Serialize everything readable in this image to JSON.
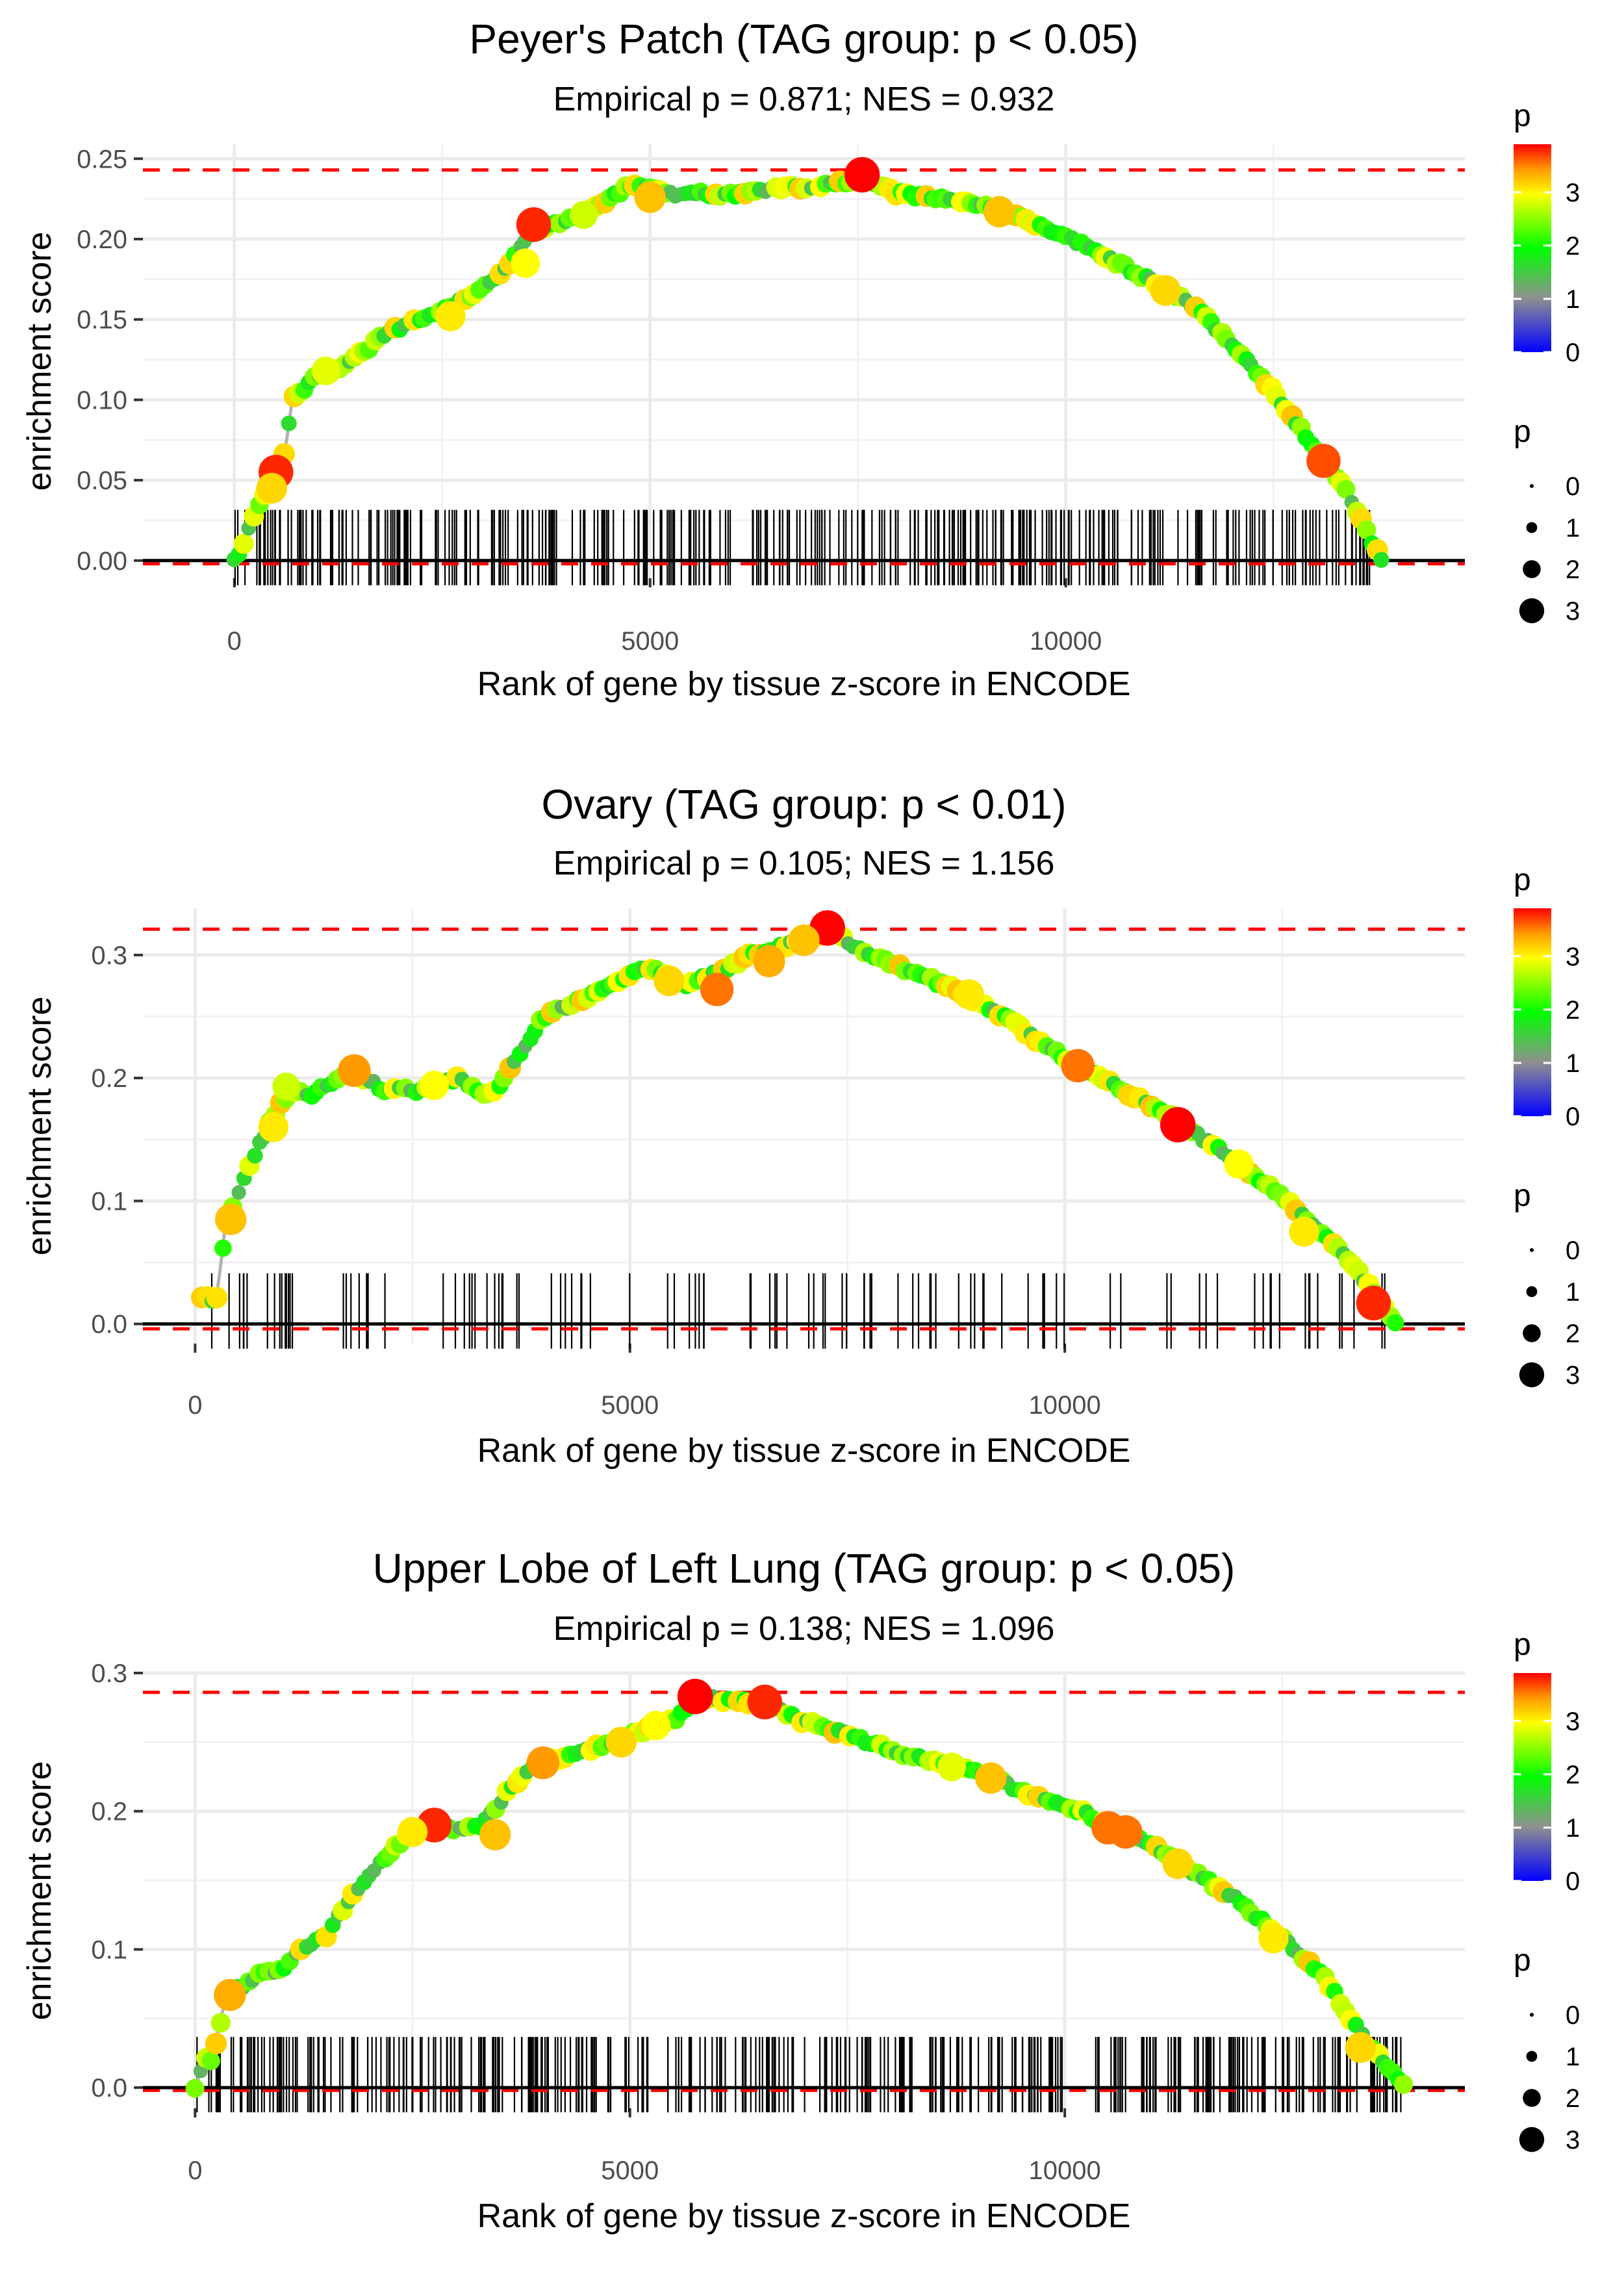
{
  "chart_data": [
    {
      "type": "line",
      "title": "Peyer's Patch (TAG group: p < 0.05)",
      "subtitle": "Empirical p = 0.871; NES = 0.932",
      "xlabel": "Rank of gene by tissue z-score in ENCODE",
      "ylabel": "enrichment score",
      "xlim": [
        -1100,
        14800
      ],
      "ylim": [
        -0.011,
        0.259
      ],
      "xticks": [
        0,
        5000,
        10000
      ],
      "xtick_labels": [
        "0",
        "5000",
        "10000"
      ],
      "yticks": [
        0,
        0.05,
        0.1,
        0.15,
        0.2,
        0.25
      ],
      "ytick_labels": [
        "0.00",
        "0.05",
        "0.10",
        "0.15",
        "0.20",
        "0.25"
      ],
      "max_line": 0.243,
      "min_line": -0.002,
      "grid": true,
      "hit_range": [
        0,
        13700
      ],
      "n_hits": 330,
      "seed": 11,
      "curve": [
        [
          0,
          0
        ],
        [
          120,
          0.012
        ],
        [
          300,
          0.035
        ],
        [
          500,
          0.05
        ],
        [
          600,
          0.065
        ],
        [
          700,
          0.1
        ],
        [
          1000,
          0.115
        ],
        [
          1300,
          0.12
        ],
        [
          1500,
          0.128
        ],
        [
          1800,
          0.14
        ],
        [
          2200,
          0.15
        ],
        [
          2500,
          0.155
        ],
        [
          3000,
          0.17
        ],
        [
          3300,
          0.185
        ],
        [
          3600,
          0.205
        ],
        [
          4000,
          0.212
        ],
        [
          4500,
          0.225
        ],
        [
          4800,
          0.235
        ],
        [
          5200,
          0.228
        ],
        [
          6000,
          0.228
        ],
        [
          7000,
          0.233
        ],
        [
          7600,
          0.238
        ],
        [
          8000,
          0.228
        ],
        [
          9000,
          0.222
        ],
        [
          9500,
          0.212
        ],
        [
          10000,
          0.202
        ],
        [
          10500,
          0.188
        ],
        [
          11000,
          0.175
        ],
        [
          11500,
          0.16
        ],
        [
          12000,
          0.135
        ],
        [
          12500,
          0.105
        ],
        [
          13000,
          0.07
        ],
        [
          13300,
          0.05
        ],
        [
          13600,
          0.02
        ],
        [
          13800,
          0.0
        ]
      ],
      "highlight_points": [
        [
          500,
          0.055,
          3.8
        ],
        [
          3600,
          0.209,
          3.8
        ],
        [
          7550,
          0.24,
          3.9
        ],
        [
          13100,
          0.062,
          3.7
        ],
        [
          5000,
          0.226,
          3.3
        ],
        [
          9200,
          0.217,
          3.3
        ],
        [
          450,
          0.045,
          3.2
        ],
        [
          11200,
          0.168,
          3.2
        ],
        [
          1100,
          0.118,
          2.9
        ],
        [
          4200,
          0.215,
          2.8
        ],
        [
          3500,
          0.185,
          3.0
        ],
        [
          2600,
          0.152,
          3.1
        ]
      ],
      "legend": {
        "color_title": "p",
        "color_ticks": [
          0,
          1,
          2,
          3
        ],
        "color_max": 3.9,
        "size_title": "p",
        "size_values": [
          0,
          1,
          2,
          3
        ]
      }
    },
    {
      "type": "line",
      "title": "Ovary (TAG group: p < 0.01)",
      "subtitle": "Empirical p = 0.105; NES = 1.156",
      "xlabel": "Rank of gene by tissue z-score in ENCODE",
      "ylabel": "enrichment score",
      "xlim": [
        -600,
        14600
      ],
      "ylim": [
        -0.016,
        0.338
      ],
      "xticks": [
        0,
        5000,
        10000
      ],
      "xtick_labels": [
        "0",
        "5000",
        "10000"
      ],
      "yticks": [
        0,
        0.1,
        0.2,
        0.3
      ],
      "ytick_labels": [
        "0.0",
        "0.1",
        "0.2",
        "0.3"
      ],
      "max_line": 0.321,
      "min_line": -0.004,
      "grid": true,
      "hit_range": [
        0,
        13700
      ],
      "n_hits": 110,
      "seed": 23,
      "curve": [
        [
          80,
          0.02
        ],
        [
          250,
          0.02
        ],
        [
          350,
          0.08
        ],
        [
          450,
          0.1
        ],
        [
          700,
          0.14
        ],
        [
          900,
          0.17
        ],
        [
          1100,
          0.19
        ],
        [
          1300,
          0.185
        ],
        [
          1800,
          0.205
        ],
        [
          2200,
          0.19
        ],
        [
          2600,
          0.19
        ],
        [
          3000,
          0.2
        ],
        [
          3400,
          0.185
        ],
        [
          3700,
          0.215
        ],
        [
          4000,
          0.25
        ],
        [
          4500,
          0.265
        ],
        [
          5000,
          0.285
        ],
        [
          5300,
          0.29
        ],
        [
          5600,
          0.275
        ],
        [
          6000,
          0.285
        ],
        [
          6400,
          0.3
        ],
        [
          7000,
          0.312
        ],
        [
          7300,
          0.32
        ],
        [
          7800,
          0.298
        ],
        [
          8300,
          0.285
        ],
        [
          8800,
          0.27
        ],
        [
          9300,
          0.25
        ],
        [
          9800,
          0.225
        ],
        [
          10300,
          0.205
        ],
        [
          10800,
          0.185
        ],
        [
          11300,
          0.165
        ],
        [
          11800,
          0.14
        ],
        [
          12300,
          0.115
        ],
        [
          12800,
          0.085
        ],
        [
          13300,
          0.05
        ],
        [
          13600,
          0.02
        ],
        [
          13800,
          0.0
        ]
      ],
      "highlight_points": [
        [
          7270,
          0.322,
          3.9
        ],
        [
          1830,
          0.206,
          3.5
        ],
        [
          6000,
          0.272,
          3.6
        ],
        [
          10150,
          0.21,
          3.6
        ],
        [
          11300,
          0.162,
          3.9
        ],
        [
          13550,
          0.017,
          3.8
        ],
        [
          410,
          0.085,
          3.3
        ],
        [
          5450,
          0.279,
          3.2
        ],
        [
          6600,
          0.295,
          3.4
        ],
        [
          8900,
          0.268,
          3.1
        ],
        [
          12750,
          0.075,
          3.1
        ],
        [
          2750,
          0.194,
          3.0
        ],
        [
          1050,
          0.193,
          2.8
        ],
        [
          12000,
          0.13,
          3.0
        ],
        [
          7000,
          0.312,
          3.3
        ],
        [
          900,
          0.16,
          3.1
        ]
      ],
      "legend": {
        "color_title": "p",
        "color_ticks": [
          0,
          1,
          2,
          3
        ],
        "color_max": 3.9,
        "size_title": "p",
        "size_values": [
          0,
          1,
          2,
          3
        ]
      }
    },
    {
      "type": "line",
      "title": "Upper Lobe of Left Lung (TAG group: p < 0.05)",
      "subtitle": "Empirical p = 0.138; NES = 1.096",
      "xlabel": "Rank of gene by tissue z-score in ENCODE",
      "ylabel": "enrichment score",
      "xlim": [
        -600,
        14600
      ],
      "ylim": [
        -0.015,
        0.3
      ],
      "xticks": [
        0,
        5000,
        10000
      ],
      "xtick_labels": [
        "0",
        "5000",
        "10000"
      ],
      "yticks": [
        0,
        0.1,
        0.2,
        0.3
      ],
      "ytick_labels": [
        "0.0",
        "0.1",
        "0.2",
        "0.3"
      ],
      "max_line": 0.286,
      "min_line": -0.002,
      "grid": true,
      "hit_range": [
        0,
        13900
      ],
      "n_hits": 380,
      "seed": 37,
      "curve": [
        [
          0,
          0
        ],
        [
          100,
          0.02
        ],
        [
          200,
          0.02
        ],
        [
          350,
          0.065
        ],
        [
          500,
          0.072
        ],
        [
          800,
          0.085
        ],
        [
          1000,
          0.085
        ],
        [
          1200,
          0.1
        ],
        [
          1500,
          0.11
        ],
        [
          1800,
          0.14
        ],
        [
          2100,
          0.16
        ],
        [
          2400,
          0.18
        ],
        [
          2700,
          0.19
        ],
        [
          3000,
          0.186
        ],
        [
          3300,
          0.19
        ],
        [
          3600,
          0.215
        ],
        [
          3900,
          0.235
        ],
        [
          4300,
          0.24
        ],
        [
          4700,
          0.248
        ],
        [
          5200,
          0.26
        ],
        [
          5500,
          0.265
        ],
        [
          5800,
          0.282
        ],
        [
          6200,
          0.28
        ],
        [
          6600,
          0.276
        ],
        [
          7000,
          0.265
        ],
        [
          7500,
          0.255
        ],
        [
          8000,
          0.245
        ],
        [
          8500,
          0.235
        ],
        [
          9000,
          0.228
        ],
        [
          9500,
          0.215
        ],
        [
          10000,
          0.205
        ],
        [
          10500,
          0.19
        ],
        [
          11000,
          0.175
        ],
        [
          11500,
          0.155
        ],
        [
          12000,
          0.135
        ],
        [
          12500,
          0.108
        ],
        [
          13000,
          0.078
        ],
        [
          13400,
          0.04
        ],
        [
          13700,
          0.015
        ],
        [
          13900,
          0.0
        ]
      ],
      "highlight_points": [
        [
          5750,
          0.283,
          3.9
        ],
        [
          2750,
          0.19,
          3.8
        ],
        [
          6550,
          0.279,
          3.8
        ],
        [
          10500,
          0.188,
          3.6
        ],
        [
          10700,
          0.185,
          3.6
        ],
        [
          4000,
          0.235,
          3.5
        ],
        [
          400,
          0.067,
          3.4
        ],
        [
          3450,
          0.183,
          3.3
        ],
        [
          9150,
          0.224,
          3.3
        ],
        [
          11300,
          0.162,
          3.2
        ],
        [
          4900,
          0.25,
          3.2
        ],
        [
          12400,
          0.108,
          3.1
        ],
        [
          13400,
          0.029,
          3.2
        ],
        [
          2500,
          0.185,
          3.1
        ],
        [
          5300,
          0.262,
          3.0
        ],
        [
          8700,
          0.232,
          2.9
        ]
      ],
      "legend": {
        "color_title": "p",
        "color_ticks": [
          0,
          1,
          2,
          3
        ],
        "color_max": 3.9,
        "size_title": "p",
        "size_values": [
          0,
          1,
          2,
          3
        ]
      }
    }
  ]
}
